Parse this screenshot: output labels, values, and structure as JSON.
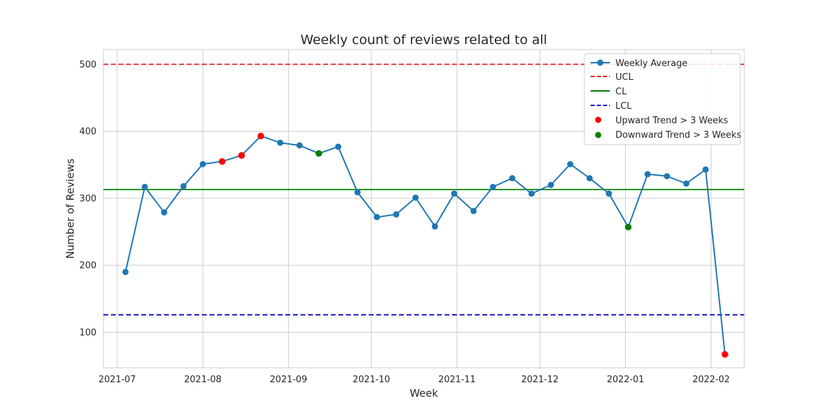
{
  "chart_data": {
    "type": "line",
    "title": "Weekly count of reviews related to all",
    "xlabel": "Week",
    "ylabel": "Number of Reviews",
    "ylim": [
      47,
      522
    ],
    "yticks": [
      100,
      200,
      300,
      400,
      500
    ],
    "xlim": [
      "2021-06-26",
      "2022-02-13"
    ],
    "xticks": [
      "2021-07",
      "2021-08",
      "2021-09",
      "2021-10",
      "2021-11",
      "2021-12",
      "2022-01",
      "2022-02"
    ],
    "xtick_dates": [
      "2021-07-01",
      "2021-08-01",
      "2021-09-01",
      "2021-10-01",
      "2021-11-01",
      "2021-12-01",
      "2022-01-01",
      "2022-02-01"
    ],
    "grid": true,
    "legend_position": "top-right",
    "series": [
      {
        "name": "Weekly Average",
        "color": "#1f77b4",
        "x": [
          "2021-07-04",
          "2021-07-11",
          "2021-07-18",
          "2021-07-25",
          "2021-08-01",
          "2021-08-08",
          "2021-08-15",
          "2021-08-22",
          "2021-08-29",
          "2021-09-05",
          "2021-09-12",
          "2021-09-19",
          "2021-09-26",
          "2021-10-03",
          "2021-10-10",
          "2021-10-17",
          "2021-10-24",
          "2021-10-31",
          "2021-11-07",
          "2021-11-14",
          "2021-11-21",
          "2021-11-28",
          "2021-12-05",
          "2021-12-12",
          "2021-12-19",
          "2021-12-26",
          "2022-01-02",
          "2022-01-09",
          "2022-01-16",
          "2022-01-23",
          "2022-01-30",
          "2022-02-06"
        ],
        "values": [
          190,
          317,
          279,
          318,
          351,
          355,
          364,
          393,
          383,
          379,
          367,
          377,
          309,
          272,
          276,
          301,
          258,
          307,
          281,
          317,
          330,
          307,
          320,
          351,
          330,
          307,
          257,
          336,
          333,
          322,
          343,
          67
        ]
      }
    ],
    "reference_lines": [
      {
        "name": "UCL",
        "value": 500,
        "color": "#e41a1c",
        "style": "dashed"
      },
      {
        "name": "CL",
        "value": 313,
        "color": "#008000",
        "style": "solid"
      },
      {
        "name": "LCL",
        "value": 126,
        "color": "#0000cc",
        "style": "dashed"
      }
    ],
    "highlights": [
      {
        "name": "Upward Trend > 3 Weeks",
        "color": "#ff0000",
        "x": [
          "2021-08-08",
          "2021-08-15",
          "2021-08-22",
          "2022-02-06"
        ],
        "values": [
          355,
          364,
          393,
          67
        ]
      },
      {
        "name": "Downward Trend > 3 Weeks",
        "color": "#008000",
        "x": [
          "2021-09-12",
          "2022-01-02"
        ],
        "values": [
          367,
          257
        ]
      }
    ]
  }
}
